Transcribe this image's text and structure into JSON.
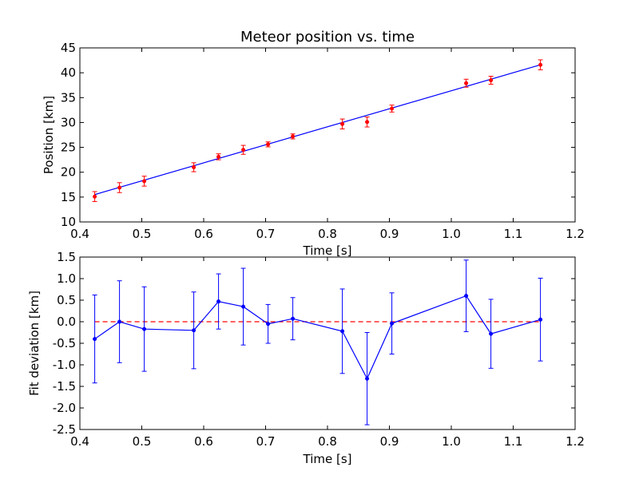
{
  "chart_data": [
    {
      "type": "scatter",
      "title": "Meteor position vs. time",
      "xlabel": "Time [s]",
      "ylabel": "Position [km]",
      "xlim": [
        0.4,
        1.2
      ],
      "ylim": [
        10,
        45
      ],
      "x_ticks": [
        0.4,
        0.5,
        0.6,
        0.7,
        0.8,
        0.9,
        1.0,
        1.1,
        1.2
      ],
      "y_ticks": [
        10,
        15,
        20,
        25,
        30,
        35,
        40,
        45
      ],
      "grid": false,
      "point_color": "#ff0000",
      "errorbar_color": "#ff0000",
      "line_color": "#0000ff",
      "points": {
        "x": [
          0.424,
          0.464,
          0.504,
          0.584,
          0.624,
          0.664,
          0.704,
          0.744,
          0.824,
          0.864,
          0.904,
          1.024,
          1.064,
          1.144
        ],
        "y": [
          15.1,
          16.9,
          18.2,
          21.0,
          23.1,
          24.5,
          25.6,
          27.2,
          29.7,
          30.1,
          32.8,
          37.9,
          38.5,
          41.6
        ],
        "yerr": [
          1.0,
          1.0,
          1.0,
          0.9,
          0.6,
          0.9,
          0.5,
          0.5,
          1.0,
          1.0,
          0.7,
          0.8,
          0.8,
          1.0
        ]
      },
      "fit_line": {
        "x": [
          0.424,
          1.144
        ],
        "y": [
          15.5,
          41.6
        ]
      }
    },
    {
      "type": "line",
      "xlabel": "Time [s]",
      "ylabel": "Fit deviation [km]",
      "xlim": [
        0.4,
        1.2
      ],
      "ylim": [
        -2.5,
        1.5
      ],
      "x_ticks": [
        0.4,
        0.5,
        0.6,
        0.7,
        0.8,
        0.9,
        1.0,
        1.1,
        1.2
      ],
      "y_ticks": [
        -2.5,
        -2.0,
        -1.5,
        -1.0,
        -0.5,
        0.0,
        0.5,
        1.0,
        1.5
      ],
      "grid": false,
      "line_color": "#0000ff",
      "zero_line_color": "#ff0000",
      "zero_line": {
        "x": [
          0.424,
          1.144
        ],
        "y": 0.0
      },
      "points": {
        "x": [
          0.424,
          0.464,
          0.504,
          0.584,
          0.624,
          0.664,
          0.704,
          0.744,
          0.824,
          0.864,
          0.904,
          1.024,
          1.064,
          1.144
        ],
        "y": [
          -0.4,
          0.0,
          -0.17,
          -0.2,
          0.47,
          0.35,
          -0.05,
          0.07,
          -0.22,
          -1.32,
          -0.04,
          0.6,
          -0.28,
          0.05
        ],
        "yerr": [
          1.02,
          0.95,
          0.98,
          0.89,
          0.64,
          0.89,
          0.45,
          0.49,
          0.98,
          1.07,
          0.71,
          0.83,
          0.8,
          0.96
        ]
      }
    }
  ]
}
